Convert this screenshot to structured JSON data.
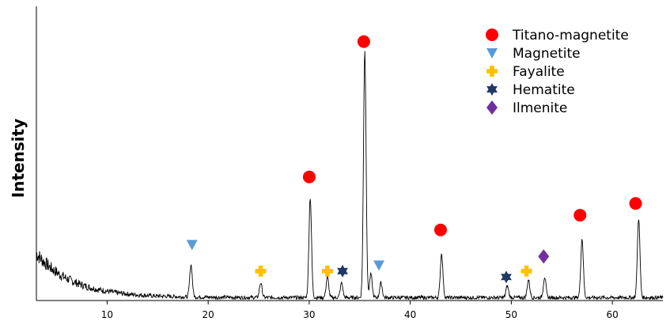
{
  "chart_data": {
    "type": "line",
    "title": "",
    "xlabel": "",
    "ylabel": "Intensity",
    "xlim": [
      3,
      65
    ],
    "ylim": [
      0,
      100
    ],
    "grid": false,
    "legend_position": "top-right",
    "x_ticks": [
      10,
      20,
      30,
      40,
      50,
      60
    ],
    "x_tick_labels": [
      "10",
      "20",
      "30",
      "40",
      "50",
      "60"
    ],
    "peaks": [
      {
        "x": 18.3,
        "h": 11
      },
      {
        "x": 25.2,
        "h": 5
      },
      {
        "x": 30.1,
        "h": 34
      },
      {
        "x": 31.8,
        "h": 7
      },
      {
        "x": 33.2,
        "h": 5
      },
      {
        "x": 35.5,
        "h": 84
      },
      {
        "x": 36.1,
        "h": 8
      },
      {
        "x": 37.1,
        "h": 5
      },
      {
        "x": 43.1,
        "h": 15
      },
      {
        "x": 49.6,
        "h": 4
      },
      {
        "x": 51.7,
        "h": 6
      },
      {
        "x": 53.3,
        "h": 7
      },
      {
        "x": 57.0,
        "h": 20
      },
      {
        "x": 62.6,
        "h": 27
      }
    ],
    "series": [
      {
        "name": "Titano-magnetite",
        "marker": "circle",
        "color": "#ff0000",
        "x": [
          30.0,
          35.4,
          43.0,
          56.8,
          62.3
        ],
        "y": [
          42,
          88,
          24,
          29,
          33
        ]
      },
      {
        "name": "Magnetite",
        "marker": "triangle-down",
        "color": "#5b9bd5",
        "x": [
          18.4,
          36.9
        ],
        "y": [
          19,
          12
        ]
      },
      {
        "name": "Fayalite",
        "marker": "cross",
        "color": "#ffc000",
        "x": [
          25.2,
          31.8,
          51.5
        ],
        "y": [
          10,
          10,
          10
        ]
      },
      {
        "name": "Hematite",
        "marker": "star",
        "color": "#1f3864",
        "x": [
          33.3,
          49.5
        ],
        "y": [
          10,
          8
        ]
      },
      {
        "name": "Ilmenite",
        "marker": "diamond",
        "color": "#7030a0",
        "x": [
          53.2
        ],
        "y": [
          15
        ]
      }
    ]
  }
}
